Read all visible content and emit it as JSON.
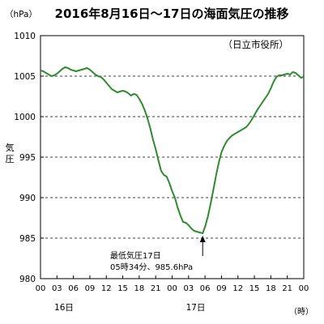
{
  "chart_data": {
    "type": "line",
    "title": "2016年8月16日～17日の海面気圧の推移",
    "unit": "（hPa）",
    "source": "（日立市役所）",
    "ylabel": "気圧",
    "ylim": [
      980,
      1010
    ],
    "yticks": [
      "980",
      "985",
      "990",
      "995",
      "1000",
      "1005",
      "1010"
    ],
    "xlim": [
      0,
      48
    ],
    "xticks": [
      "00",
      "03",
      "06",
      "09",
      "12",
      "15",
      "18",
      "21",
      "00",
      "03",
      "06",
      "09",
      "12",
      "15",
      "18",
      "21",
      "00"
    ],
    "xunit": "（時）",
    "day_labels": [
      {
        "x": 0,
        "label": "16日"
      },
      {
        "x": 24,
        "label": "17日"
      }
    ],
    "grid": "horizontal dashed",
    "line_color": "#2e8b2e",
    "annotation": {
      "line1": "最低気圧17日",
      "line2": "05時34分、985.6hPa",
      "x": 29.57,
      "y": 985.6
    },
    "series": [
      {
        "x": [
          0,
          0.5,
          1,
          1.5,
          2,
          2.5,
          3,
          3.5,
          4,
          4.5,
          5,
          5.5,
          6,
          6.5,
          7,
          7.5,
          8,
          8.5,
          9,
          9.5,
          10,
          10.5,
          11,
          11.5,
          12,
          12.5,
          13,
          13.5,
          14,
          14.5,
          15,
          15.5,
          16,
          16.5,
          17,
          17.5,
          18,
          18.5,
          19,
          19.5,
          20,
          20.5,
          21,
          21.5,
          22,
          22.5,
          23,
          23.5,
          24,
          24.5,
          25,
          25.5,
          26,
          26.5,
          27,
          27.5,
          28,
          28.5,
          29,
          29.57,
          30,
          30.5,
          31,
          31.5,
          32,
          32.5,
          33,
          33.5,
          34,
          34.5,
          35,
          35.5,
          36,
          36.5,
          37,
          37.5,
          38,
          38.5,
          39,
          39.5,
          40,
          40.5,
          41,
          41.5,
          42,
          42.5,
          43,
          43.5,
          44,
          44.5,
          45,
          45.5,
          46,
          46.5,
          47,
          47.5,
          48
        ],
        "values": [
          1005.7,
          1005.6,
          1005.4,
          1005.2,
          1005.0,
          1005.1,
          1005.3,
          1005.6,
          1005.9,
          1006.1,
          1006.0,
          1005.8,
          1005.7,
          1005.6,
          1005.7,
          1005.8,
          1005.9,
          1006.0,
          1005.8,
          1005.5,
          1005.2,
          1005.0,
          1004.9,
          1004.6,
          1004.2,
          1003.8,
          1003.4,
          1003.2,
          1003.0,
          1003.1,
          1003.2,
          1003.1,
          1002.9,
          1002.6,
          1002.8,
          1002.7,
          1002.2,
          1001.6,
          1000.8,
          999.8,
          998.6,
          997.2,
          996.0,
          994.6,
          993.3,
          992.8,
          992.6,
          991.8,
          990.8,
          990.0,
          988.8,
          987.8,
          987.0,
          986.9,
          986.6,
          986.2,
          985.9,
          985.8,
          985.7,
          985.6,
          986.4,
          987.6,
          989.2,
          990.9,
          992.7,
          994.3,
          995.6,
          996.4,
          997.0,
          997.4,
          997.7,
          997.9,
          998.1,
          998.3,
          998.5,
          998.7,
          999.1,
          999.6,
          1000.2,
          1000.8,
          1001.3,
          1001.8,
          1002.3,
          1002.8,
          1003.5,
          1004.3,
          1004.9,
          1005.1,
          1005.1,
          1005.2,
          1005.3,
          1005.2,
          1005.5,
          1005.4,
          1005.1,
          1004.8,
          1004.9
        ]
      }
    ]
  }
}
